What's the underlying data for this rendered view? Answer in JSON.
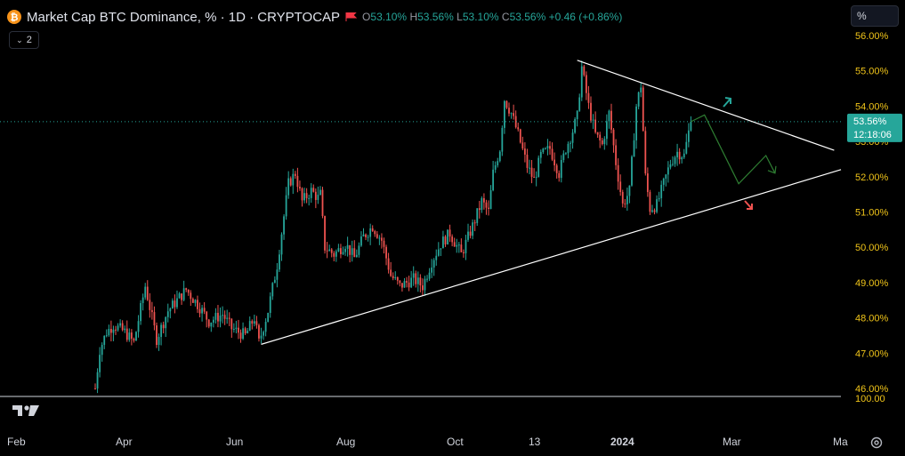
{
  "header": {
    "title": "Market Cap BTC Dominance, % · 1D · CRYPTOCAP",
    "open_label": "O",
    "open": "53.10%",
    "high_label": "H",
    "high": "53.56%",
    "low_label": "L",
    "low": "53.10%",
    "close_label": "C",
    "close": "53.56%",
    "change": "+0.46 (+0.86%)"
  },
  "indicator_toggle": {
    "count": "2"
  },
  "price_scale_input": {
    "value": "%"
  },
  "colors": {
    "up": "#26a69a",
    "down": "#ef5350",
    "axis_label": "#f0c419",
    "current_price": "#26a69a",
    "btc": "#f7931a"
  },
  "chart_data": {
    "type": "candlestick",
    "title": "Market Cap BTC Dominance, % · 1D · CRYPTOCAP",
    "y_axis": {
      "unit": "%",
      "range": [
        45.75,
        56.25
      ],
      "ticks": [
        "56.00%",
        "55.00%",
        "54.00%",
        "53.00%",
        "52.00%",
        "51.00%",
        "50.00%",
        "49.00%",
        "48.00%",
        "47.00%",
        "46.00%"
      ]
    },
    "x_axis": {
      "ticks": [
        "Feb",
        "Apr",
        "Jun",
        "Aug",
        "Oct",
        "13",
        "2024",
        "Mar",
        "Ma"
      ]
    },
    "current_price": {
      "value": "53.56%",
      "countdown": "12:18:06"
    },
    "secondary_scale_label": "100.00",
    "anchor_path": [
      [
        0,
        46.0
      ],
      [
        2,
        47.1
      ],
      [
        5,
        47.6
      ],
      [
        8,
        47.8
      ],
      [
        13,
        47.6
      ],
      [
        17,
        47.3
      ],
      [
        22,
        48.9
      ],
      [
        27,
        47.4
      ],
      [
        32,
        48.2
      ],
      [
        40,
        48.8
      ],
      [
        46,
        48.3
      ],
      [
        50,
        47.9
      ],
      [
        56,
        48.1
      ],
      [
        60,
        47.7
      ],
      [
        66,
        47.5
      ],
      [
        70,
        48.0
      ],
      [
        72,
        47.3
      ],
      [
        76,
        48.2
      ],
      [
        80,
        49.5
      ],
      [
        85,
        51.8
      ],
      [
        88,
        52.1
      ],
      [
        91,
        51.3
      ],
      [
        95,
        51.6
      ],
      [
        98,
        51.4
      ],
      [
        99,
        51.5
      ],
      [
        101,
        50.0
      ],
      [
        105,
        49.8
      ],
      [
        110,
        50.1
      ],
      [
        114,
        49.7
      ],
      [
        118,
        50.3
      ],
      [
        122,
        50.6
      ],
      [
        126,
        50.2
      ],
      [
        130,
        49.2
      ],
      [
        134,
        48.9
      ],
      [
        140,
        49.1
      ],
      [
        144,
        48.9
      ],
      [
        148,
        49.6
      ],
      [
        152,
        50.1
      ],
      [
        156,
        50.4
      ],
      [
        161,
        49.8
      ],
      [
        166,
        50.6
      ],
      [
        170,
        51.3
      ],
      [
        173,
        51.0
      ],
      [
        175,
        52.1
      ],
      [
        178,
        52.8
      ],
      [
        180,
        54.2
      ],
      [
        183,
        53.8
      ],
      [
        186,
        53.2
      ],
      [
        190,
        52.3
      ],
      [
        193,
        51.9
      ],
      [
        196,
        52.6
      ],
      [
        200,
        52.8
      ],
      [
        204,
        52.1
      ],
      [
        207,
        52.8
      ],
      [
        210,
        53.3
      ],
      [
        212,
        53.7
      ],
      [
        214,
        55.1
      ],
      [
        217,
        54.0
      ],
      [
        220,
        53.2
      ],
      [
        223,
        52.9
      ],
      [
        226,
        53.8
      ],
      [
        229,
        52.4
      ],
      [
        232,
        51.2
      ],
      [
        235,
        51.6
      ],
      [
        238,
        54.0
      ],
      [
        240,
        54.6
      ],
      [
        242,
        52.0
      ],
      [
        244,
        51.1
      ],
      [
        247,
        51.2
      ],
      [
        250,
        51.8
      ],
      [
        253,
        52.4
      ],
      [
        256,
        52.7
      ],
      [
        259,
        52.6
      ],
      [
        262,
        53.6
      ]
    ],
    "trendlines": [
      {
        "name": "upper",
        "from": {
          "day": 212,
          "value": 55.3
        },
        "to": {
          "day": 325,
          "value": 52.75
        }
      },
      {
        "name": "lower",
        "from": {
          "day": 73,
          "value": 47.25
        },
        "to": {
          "day": 328,
          "value": 52.2
        }
      }
    ],
    "projection": [
      [
        262,
        53.56
      ],
      [
        268,
        53.75
      ],
      [
        283,
        51.8
      ],
      [
        295,
        52.6
      ],
      [
        299,
        52.1
      ]
    ],
    "annotations": [
      {
        "name": "breakout-up-arrow",
        "direction": "up",
        "color": "#26a69a"
      },
      {
        "name": "breakdown-arrow",
        "direction": "down",
        "color": "#ef5350"
      }
    ]
  }
}
